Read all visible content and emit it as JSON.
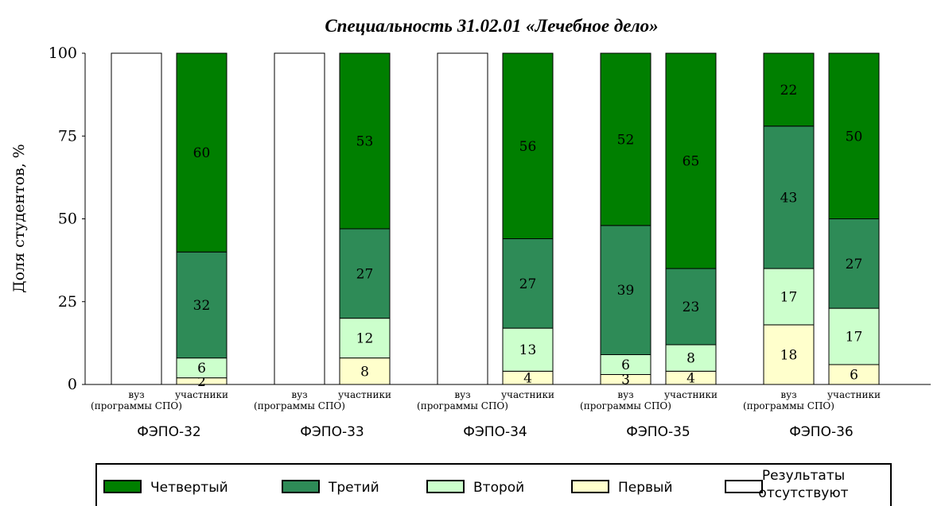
{
  "chart_data": {
    "type": "bar",
    "stacked": true,
    "title": "Специальность 31.02.01 «Лечебное дело»",
    "ylabel": "Доля студентов, %",
    "ylim": [
      0,
      100
    ],
    "yticks": [
      "0",
      "25",
      "50",
      "75",
      "100"
    ],
    "groups": [
      "ФЭПО-32",
      "ФЭПО-33",
      "ФЭПО-34",
      "ФЭПО-35",
      "ФЭПО-36"
    ],
    "bar_categories": [
      "вуз\n(программы СПО)",
      "участники"
    ],
    "series": [
      {
        "name": "Первый",
        "color": "#ffffcc",
        "values": [
          [
            null,
            2
          ],
          [
            null,
            8
          ],
          [
            null,
            4
          ],
          [
            3,
            4
          ],
          [
            18,
            6
          ]
        ]
      },
      {
        "name": "Второй",
        "color": "#ccffcc",
        "values": [
          [
            null,
            6
          ],
          [
            null,
            12
          ],
          [
            null,
            13
          ],
          [
            6,
            8
          ],
          [
            17,
            17
          ]
        ]
      },
      {
        "name": "Третий",
        "color": "#2e8b57",
        "values": [
          [
            null,
            32
          ],
          [
            null,
            27
          ],
          [
            null,
            27
          ],
          [
            39,
            23
          ],
          [
            43,
            27
          ]
        ]
      },
      {
        "name": "Четвертый",
        "color": "#007f00",
        "values": [
          [
            null,
            60
          ],
          [
            null,
            53
          ],
          [
            null,
            56
          ],
          [
            52,
            65
          ],
          [
            22,
            50
          ]
        ]
      }
    ],
    "missing": {
      "name": "Результаты отсутствуют",
      "color": "#ffffff",
      "flags": [
        [
          true,
          false
        ],
        [
          true,
          false
        ],
        [
          true,
          false
        ],
        [
          false,
          false
        ],
        [
          false,
          false
        ]
      ]
    },
    "legend_order": [
      "Четвертый",
      "Третий",
      "Второй",
      "Первый",
      "Результаты отсутствуют"
    ],
    "legend": {
      "Четвертый": "Четвертый",
      "Третий": "Третий",
      "Второй": "Второй",
      "Первый": "Первый",
      "Результаты отсутствуют": [
        "Результаты",
        "отсутствуют"
      ]
    },
    "legend_placement": "bottom",
    "grid": false
  }
}
